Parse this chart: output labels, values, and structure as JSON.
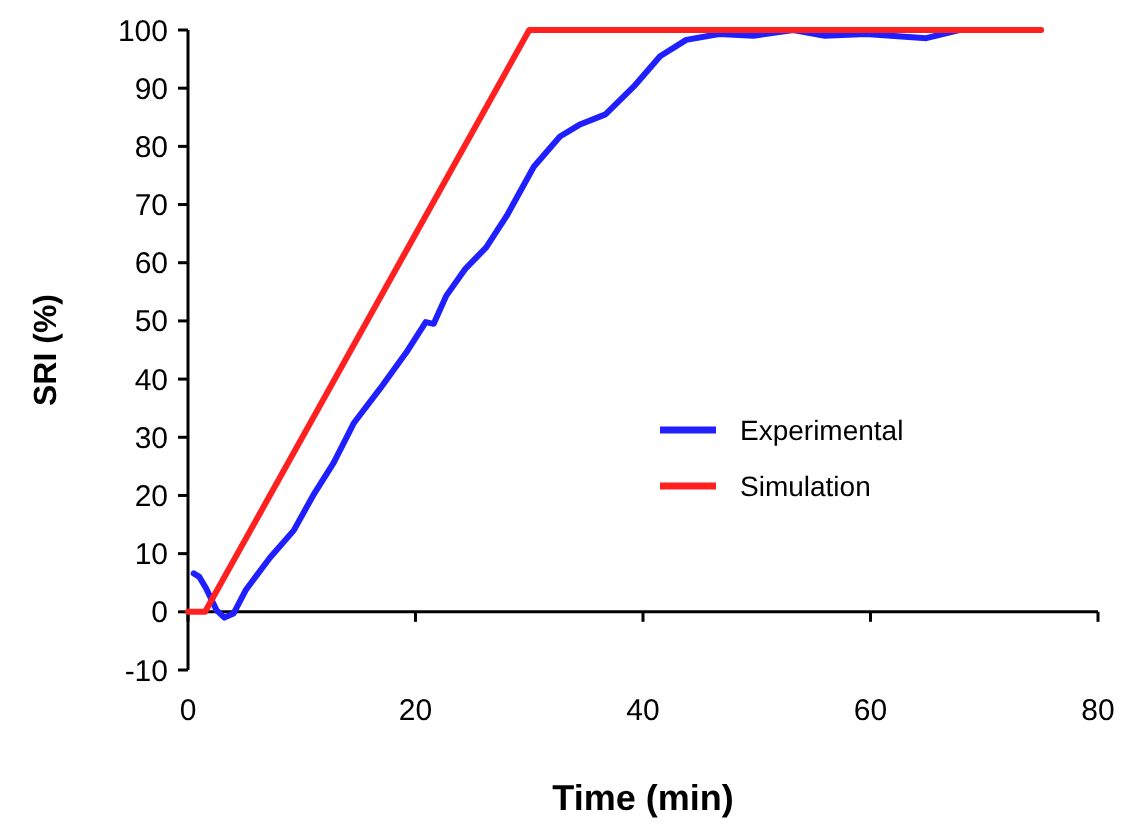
{
  "chart_data": {
    "type": "line",
    "xlabel": "Time (min)",
    "ylabel": "SRI (%)",
    "xlim": [
      0,
      80
    ],
    "xticks": [
      0,
      20,
      40,
      60,
      80
    ],
    "ylim": [
      -10,
      100
    ],
    "yticks": [
      -10,
      0,
      10,
      20,
      30,
      40,
      50,
      60,
      70,
      80,
      90,
      100
    ],
    "legend": "right",
    "marker": "none",
    "line_style": "solid",
    "series": [
      {
        "name": "Experimental",
        "color": "#1f1fff",
        "x": [
          0.5,
          1,
          1.6,
          2.5,
          3.2,
          4,
          5.1,
          7.2,
          9.3,
          11,
          12.8,
          14.6,
          16.9,
          19.2,
          20.9,
          21.6,
          22.7,
          24.4,
          26.2,
          28,
          30.4,
          32.7,
          34.4,
          36.7,
          39.2,
          41.5,
          43.8,
          46.7,
          49.7,
          53.2,
          56,
          59.6,
          64.9,
          67.8
        ],
        "values": [
          6.6,
          6,
          4,
          0.3,
          -1,
          -0.3,
          3.8,
          9.3,
          14,
          20,
          25.6,
          32.5,
          38.4,
          44.6,
          49.8,
          49.5,
          54.3,
          59,
          62.6,
          68,
          76.5,
          81.7,
          83.7,
          85.5,
          90.3,
          95.5,
          98.3,
          99.3,
          99,
          100,
          99,
          99.3,
          98.6,
          100
        ]
      },
      {
        "name": "Simulation",
        "color": "#ff2020",
        "x": [
          0,
          1.5,
          30,
          75
        ],
        "values": [
          0,
          0,
          100,
          100
        ]
      }
    ]
  }
}
